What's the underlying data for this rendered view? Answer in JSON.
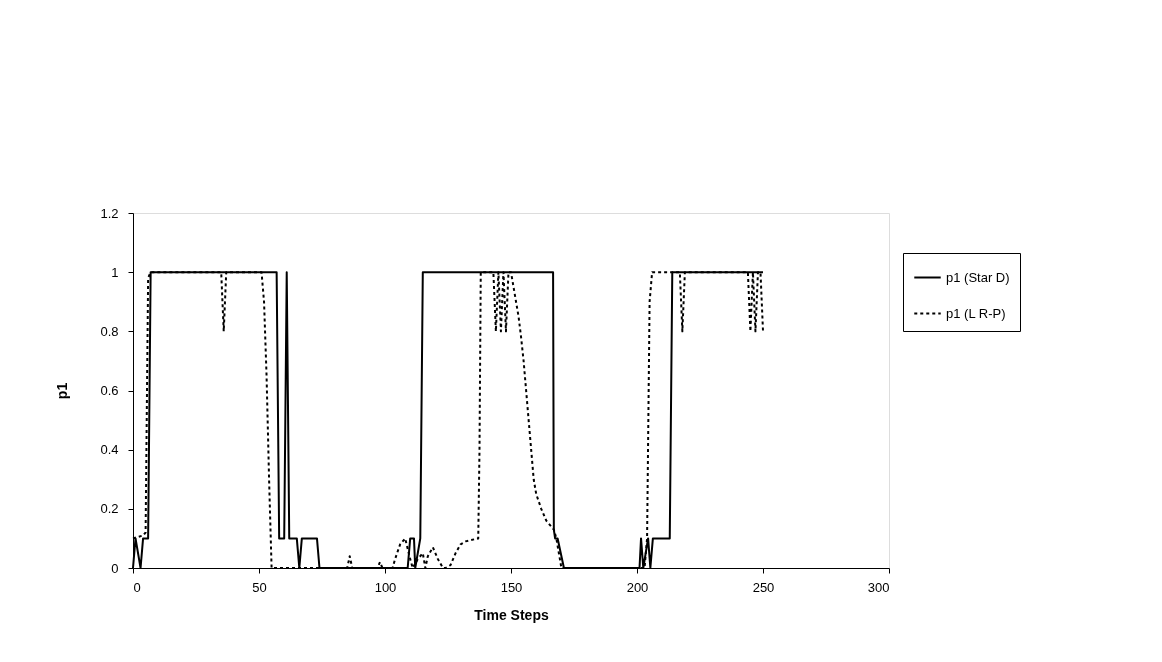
{
  "chart_data": {
    "type": "line",
    "xlabel": "Time Steps",
    "ylabel": "p1",
    "xlim": [
      0,
      300
    ],
    "ylim": [
      0,
      1.2
    ],
    "xticks": [
      0,
      50,
      100,
      150,
      200,
      250,
      300
    ],
    "yticks": [
      0,
      0.2,
      0.4,
      0.6,
      0.8,
      1,
      1.2
    ],
    "grid": false,
    "legend": "right",
    "marker": "none",
    "series": [
      {
        "name": "p1 (Star D)",
        "color": "#000000",
        "line_style": "solid",
        "x": [
          0,
          1,
          3,
          4,
          6,
          7,
          57,
          58,
          60,
          61,
          62,
          65,
          66,
          67,
          73,
          74,
          109,
          110,
          111.5,
          112,
          114,
          115,
          166.7,
          167,
          167.5,
          168.5,
          171,
          201,
          201.6,
          202.5,
          204.4,
          205.3,
          206.3,
          213,
          214,
          250
        ],
        "values": [
          0,
          0.1,
          0,
          0.1,
          0.1,
          1,
          1,
          0.1,
          0.1,
          1,
          0.1,
          0.1,
          0,
          0.1,
          0.1,
          0,
          0,
          0.1,
          0.1,
          0,
          0.1,
          1,
          1,
          0.13,
          0.1,
          0.1,
          0,
          0,
          0.1,
          0,
          0.1,
          0,
          0.1,
          0.1,
          1,
          1
        ]
      },
      {
        "name": "p1 (L R-P)",
        "color": "#000000",
        "line_style": "dotted",
        "x": [
          0,
          4,
          5,
          6,
          7,
          35,
          36,
          37,
          50,
          51,
          52,
          53,
          54,
          55,
          85,
          86,
          87,
          97,
          98,
          99,
          103,
          104,
          106,
          108,
          110,
          111,
          113,
          115,
          116,
          117,
          119,
          121,
          123,
          124,
          126,
          128,
          130,
          132,
          137,
          137.5,
          138,
          143,
          144,
          145,
          146,
          147,
          148,
          149,
          150,
          151,
          152,
          153,
          154,
          155,
          156,
          157,
          158,
          159,
          160,
          162,
          164,
          166,
          167,
          168,
          169,
          170,
          203,
          204,
          205,
          206,
          217,
          218,
          219,
          244,
          245,
          246,
          247,
          248,
          249,
          250
        ],
        "values": [
          0.1,
          0.11,
          0.12,
          0.98,
          1,
          1,
          0.8,
          1,
          1,
          1,
          0.9,
          0.65,
          0.3,
          0,
          0,
          0.04,
          0,
          0,
          0.02,
          0,
          0,
          0.03,
          0.08,
          0.1,
          0.03,
          0,
          0.03,
          0.05,
          0,
          0.04,
          0.07,
          0.03,
          0,
          0,
          0.01,
          0.05,
          0.08,
          0.09,
          0.1,
          0.4,
          1,
          1,
          0.8,
          1,
          0.8,
          1,
          0.8,
          1,
          1,
          0.95,
          0.9,
          0.85,
          0.78,
          0.7,
          0.6,
          0.5,
          0.4,
          0.3,
          0.25,
          0.2,
          0.16,
          0.14,
          0.13,
          0.1,
          0.05,
          0,
          0,
          0.1,
          0.9,
          1,
          1,
          0.8,
          1,
          1,
          0.8,
          1,
          0.8,
          1,
          1,
          0.8
        ]
      }
    ]
  }
}
